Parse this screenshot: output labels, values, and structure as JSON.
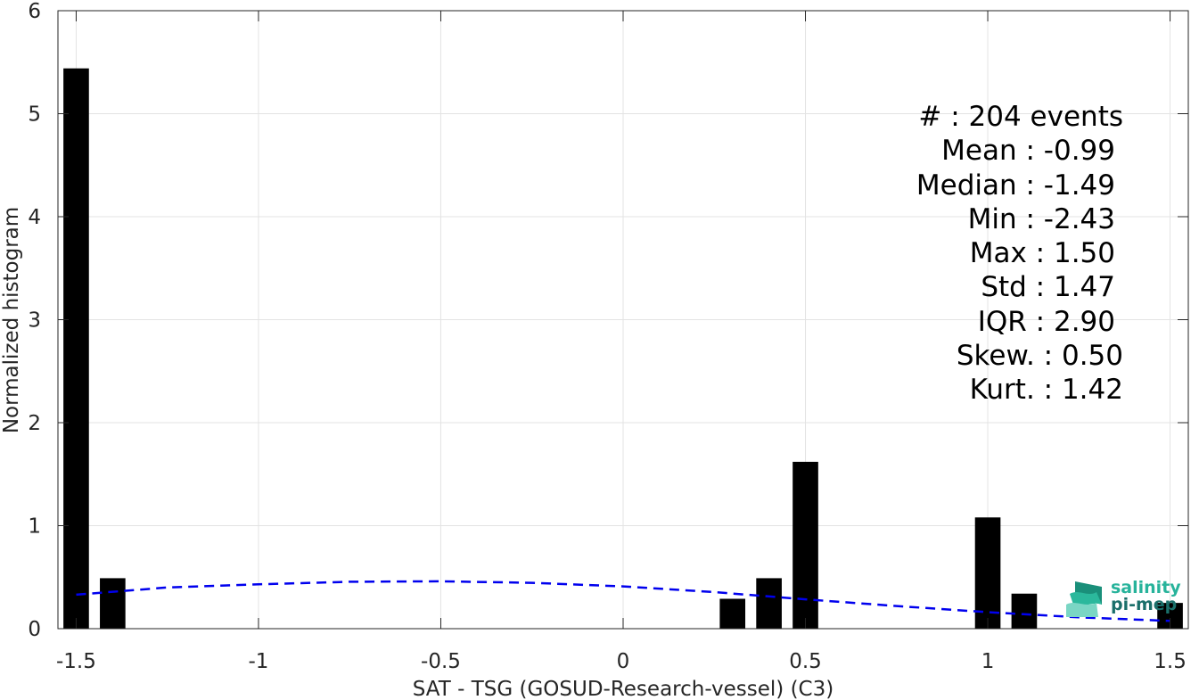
{
  "chart_data": {
    "type": "bar",
    "xlabel": "SAT - TSG (GOSUD-Research-vessel) (C3)",
    "ylabel": "Normalized histogram",
    "xlim": [
      -1.55,
      1.55
    ],
    "ylim": [
      0,
      6
    ],
    "xticks": [
      -1.5,
      -1,
      -0.5,
      0,
      0.5,
      1,
      1.5
    ],
    "xtick_labels": [
      "-1.5",
      "-1",
      "-0.5",
      "0",
      "0.5",
      "1",
      "1.5"
    ],
    "yticks": [
      0,
      1,
      2,
      3,
      4,
      5,
      6
    ],
    "ytick_labels": [
      "0",
      "1",
      "2",
      "3",
      "4",
      "5",
      "6"
    ],
    "grid": true,
    "bar_width": 0.07,
    "bar_color": "#000000",
    "bars": [
      {
        "x": -1.5,
        "value": 5.44
      },
      {
        "x": -1.4,
        "value": 0.49
      },
      {
        "x": 0.3,
        "value": 0.29
      },
      {
        "x": 0.4,
        "value": 0.49
      },
      {
        "x": 0.5,
        "value": 1.62
      },
      {
        "x": 1.0,
        "value": 1.08
      },
      {
        "x": 1.1,
        "value": 0.34
      },
      {
        "x": 1.5,
        "value": 0.25
      }
    ],
    "fit_curve": {
      "style": "dashed",
      "color": "#0000ee",
      "x": [
        -1.5,
        -1.25,
        -1.0,
        -0.75,
        -0.5,
        -0.25,
        0.0,
        0.25,
        0.5,
        0.75,
        1.0,
        1.25,
        1.5
      ],
      "y": [
        0.33,
        0.4,
        0.43,
        0.455,
        0.46,
        0.445,
        0.41,
        0.355,
        0.285,
        0.22,
        0.16,
        0.11,
        0.075
      ]
    }
  },
  "stats": {
    "events": "#  : 204 events",
    "mean": "Mean : -0.99",
    "median": "Median : -1.49",
    "min": "Min : -2.43",
    "max": "Max : 1.50",
    "std": "Std : 1.47",
    "iqr": "IQR : 2.90",
    "skew": "Skew. : 0.50",
    "kurt": "Kurt. : 1.42"
  },
  "logo": {
    "line1": "salinity",
    "line2": "pi-mep",
    "color1": "#27b39b",
    "color2": "#1a6f6a"
  }
}
